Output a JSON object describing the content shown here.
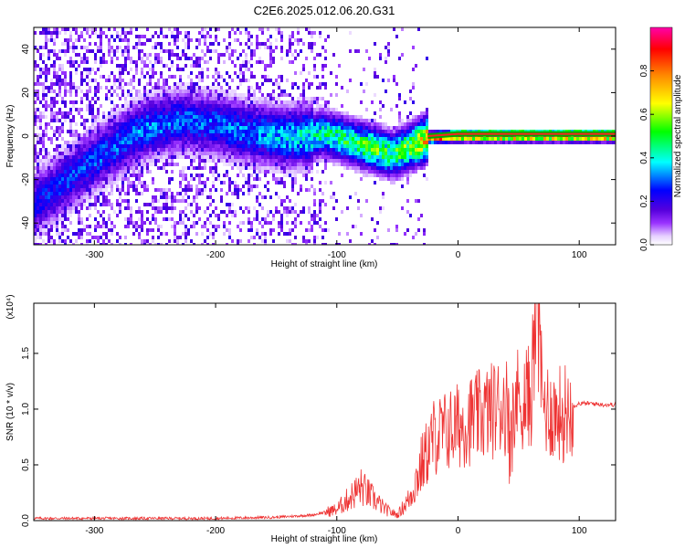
{
  "chart_data": [
    {
      "type": "heatmap",
      "title": "C2E6.2025.012.06.20.G31",
      "xlabel": "Height of straight line (km)",
      "ylabel": "Frequency (Hz)",
      "xlim": [
        -350,
        130
      ],
      "ylim": [
        -50,
        50
      ],
      "x_ticks": [
        -300,
        -200,
        -100,
        0,
        100
      ],
      "y_ticks": [
        -40,
        -20,
        0,
        20,
        40
      ],
      "colorbar": {
        "label": "Normalized spectral amplitude",
        "range": [
          0.0,
          1.0
        ],
        "ticks": [
          "0.0",
          "0.2",
          "0.4",
          "0.6",
          "0.8"
        ],
        "colors": [
          "#ffffff",
          "#e6d0ff",
          "#9933ff",
          "#5500dd",
          "#0000ff",
          "#00ffff",
          "#00ff00",
          "#ffff00",
          "#ff8800",
          "#ff0000",
          "#ff00aa"
        ]
      },
      "ridge": [
        {
          "x": -350,
          "y": -30,
          "amp": 0.25
        },
        {
          "x": -320,
          "y": -18,
          "amp": 0.28
        },
        {
          "x": -290,
          "y": -6,
          "amp": 0.3
        },
        {
          "x": -260,
          "y": 4,
          "amp": 0.32
        },
        {
          "x": -230,
          "y": 8,
          "amp": 0.3
        },
        {
          "x": -200,
          "y": 6,
          "amp": 0.3
        },
        {
          "x": -170,
          "y": 2,
          "amp": 0.32
        },
        {
          "x": -140,
          "y": 0,
          "amp": 0.38
        },
        {
          "x": -110,
          "y": 2,
          "amp": 0.45
        },
        {
          "x": -90,
          "y": -2,
          "amp": 0.5
        },
        {
          "x": -70,
          "y": -5,
          "amp": 0.55
        },
        {
          "x": -55,
          "y": -8,
          "amp": 0.5
        },
        {
          "x": -40,
          "y": -4,
          "amp": 0.6
        },
        {
          "x": -25,
          "y": 0,
          "amp": 0.8
        },
        {
          "x": 0,
          "y": 1,
          "amp": 0.95
        },
        {
          "x": 50,
          "y": 1,
          "amp": 0.97
        },
        {
          "x": 100,
          "y": 1,
          "amp": 0.98
        },
        {
          "x": 130,
          "y": 1,
          "amp": 0.98
        }
      ]
    },
    {
      "type": "line",
      "xlabel": "Height of straight line (km)",
      "ylabel": "SNR (10 * v/v)",
      "multiplier": "(x10⁴)",
      "xlim": [
        -350,
        130
      ],
      "ylim": [
        0,
        1.95
      ],
      "x_ticks": [
        -300,
        -200,
        -100,
        0,
        100
      ],
      "y_ticks": [
        "0.0",
        "0.5",
        "1.0",
        "1.5"
      ],
      "line_color": "#ee3333",
      "series": [
        {
          "x": [
            -350,
            -300,
            -250,
            -200,
            -150,
            -120,
            -100,
            -90,
            -80,
            -70,
            -60,
            -50,
            -40,
            -30,
            -20,
            -10,
            0,
            10,
            20,
            30,
            40,
            50,
            60,
            65,
            70,
            80,
            90,
            100,
            110,
            120,
            130
          ],
          "values": [
            0.02,
            0.02,
            0.02,
            0.02,
            0.03,
            0.05,
            0.1,
            0.2,
            0.3,
            0.2,
            0.1,
            0.05,
            0.2,
            0.5,
            0.75,
            0.8,
            0.85,
            0.9,
            0.95,
            1.0,
            1.05,
            1.1,
            1.1,
            1.95,
            1.05,
            0.95,
            1.0,
            1.05,
            1.05,
            1.04,
            1.04
          ]
        }
      ]
    }
  ]
}
